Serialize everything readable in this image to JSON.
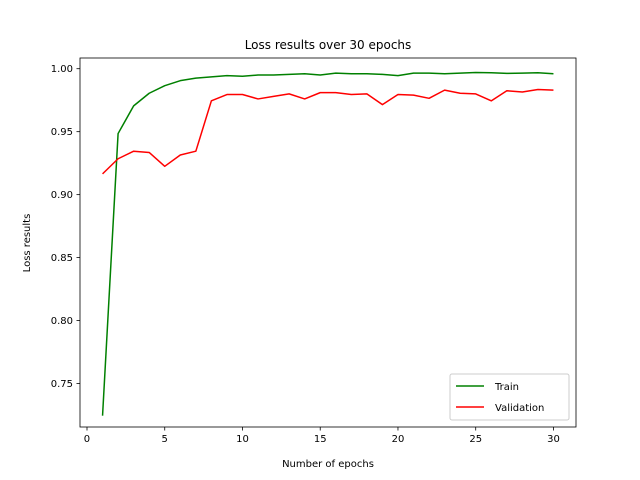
{
  "chart_data": {
    "type": "line",
    "title": "Loss results over 30 epochs",
    "xlabel": "Number of epochs",
    "ylabel": "Loss results",
    "xlim": [
      -0.45,
      31.45
    ],
    "ylim": [
      0.7155,
      1.0085
    ],
    "xticks": [
      0,
      5,
      10,
      15,
      20,
      25,
      30
    ],
    "yticks": [
      0.75,
      0.8,
      0.85,
      0.9,
      0.95,
      1.0
    ],
    "ytick_labels": [
      "0.75",
      "0.80",
      "0.85",
      "0.90",
      "0.95",
      "1.00"
    ],
    "grid": false,
    "legend_position": "lower right",
    "x": [
      1,
      2,
      3,
      4,
      5,
      6,
      7,
      8,
      9,
      10,
      11,
      12,
      13,
      14,
      15,
      16,
      17,
      18,
      19,
      20,
      21,
      22,
      23,
      24,
      25,
      26,
      27,
      28,
      29,
      30
    ],
    "series": [
      {
        "name": "Train",
        "color": "#008000",
        "values": [
          0.7245,
          0.9485,
          0.9705,
          0.9805,
          0.9865,
          0.9905,
          0.9925,
          0.9935,
          0.9945,
          0.994,
          0.995,
          0.995,
          0.9955,
          0.996,
          0.995,
          0.9965,
          0.996,
          0.996,
          0.9955,
          0.9945,
          0.9965,
          0.9965,
          0.996,
          0.9965,
          0.997,
          0.9968,
          0.9963,
          0.9965,
          0.9968,
          0.996
        ]
      },
      {
        "name": "Validation",
        "color": "#ff0000",
        "values": [
          0.9165,
          0.9285,
          0.9345,
          0.9335,
          0.9225,
          0.9315,
          0.9345,
          0.9745,
          0.9795,
          0.9795,
          0.976,
          0.978,
          0.98,
          0.976,
          0.981,
          0.981,
          0.9795,
          0.98,
          0.9715,
          0.9795,
          0.979,
          0.9765,
          0.983,
          0.9805,
          0.98,
          0.9745,
          0.9825,
          0.9815,
          0.9835,
          0.983
        ]
      }
    ]
  }
}
